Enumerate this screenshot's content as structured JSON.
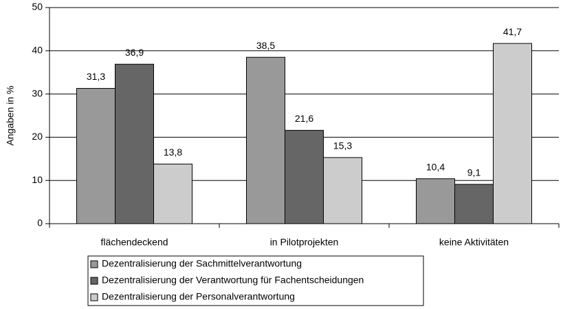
{
  "chart_data": {
    "type": "bar",
    "y_label": "Angaben in %",
    "categories": [
      "flächendeckend",
      "in Pilotprojekten",
      "keine Aktivitäten"
    ],
    "series": [
      {
        "name": "Dezentralisierung der Sachmittelverantwortung",
        "color": "#999999",
        "values": [
          31.3,
          38.5,
          10.4
        ],
        "value_labels": [
          "31,3",
          "38,5",
          "10,4"
        ]
      },
      {
        "name": "Dezentralisierung der Verantwortung für Fachentscheidungen",
        "color": "#666666",
        "values": [
          36.9,
          21.6,
          9.1
        ],
        "value_labels": [
          "36,9",
          "21,6",
          "9,1"
        ]
      },
      {
        "name": "Dezentralisierung der Personalverantwortung",
        "color": "#cccccc",
        "values": [
          13.8,
          15.3,
          41.7
        ],
        "value_labels": [
          "13,8",
          "15,3",
          "41,7"
        ]
      }
    ],
    "ylim": [
      0,
      50
    ],
    "yticks": [
      0,
      10,
      20,
      30,
      40,
      50
    ],
    "grid": true,
    "legend": "bottom"
  }
}
